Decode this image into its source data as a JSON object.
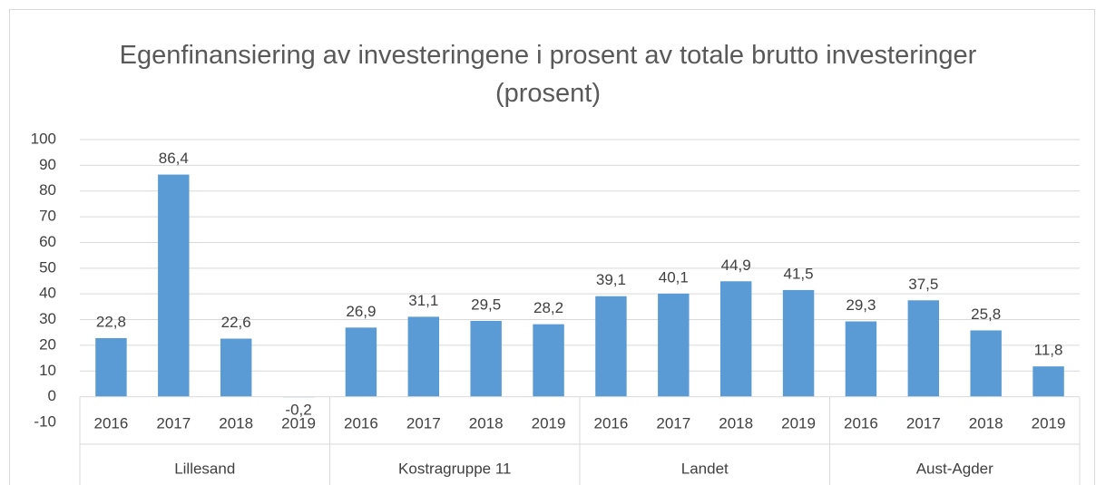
{
  "chart_data": {
    "type": "bar",
    "title": "Egenfinansiering av investeringene i prosent av totale brutto investeringer (prosent)",
    "groups": [
      "Lillesand",
      "Kostragruppe 11",
      "Landet",
      "Aust-Agder"
    ],
    "categories": [
      "2016",
      "2017",
      "2018",
      "2019",
      "2016",
      "2017",
      "2018",
      "2019",
      "2016",
      "2017",
      "2018",
      "2019",
      "2016",
      "2017",
      "2018",
      "2019"
    ],
    "values": [
      22.8,
      86.4,
      22.6,
      -0.2,
      26.9,
      31.1,
      29.5,
      28.2,
      39.1,
      40.1,
      44.9,
      41.5,
      29.3,
      37.5,
      25.8,
      11.8
    ],
    "value_labels": [
      "22,8",
      "86,4",
      "22,6",
      "-0,2",
      "26,9",
      "31,1",
      "29,5",
      "28,2",
      "39,1",
      "40,1",
      "44,9",
      "41,5",
      "29,3",
      "37,5",
      "25,8",
      "11,8"
    ],
    "color": "#5b9bd5",
    "ylim": [
      -10,
      100
    ],
    "yticks": [
      -10,
      0,
      10,
      20,
      30,
      40,
      50,
      60,
      70,
      80,
      90,
      100
    ],
    "grid": true
  }
}
